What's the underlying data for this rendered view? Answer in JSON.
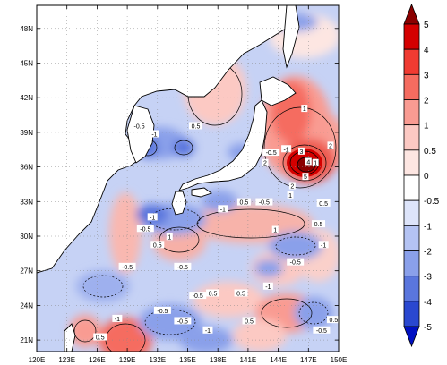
{
  "map": {
    "lon_ticks": [
      "120E",
      "123E",
      "126E",
      "129E",
      "132E",
      "135E",
      "138E",
      "141E",
      "144E",
      "147E",
      "150E"
    ],
    "lat_ticks": [
      "21N",
      "24N",
      "27N",
      "30N",
      "33N",
      "36N",
      "39N",
      "42N",
      "45N",
      "48N"
    ],
    "lon_range": [
      120,
      150
    ],
    "lat_range": [
      20,
      50
    ]
  },
  "colorbar": {
    "levels": [
      "5",
      "4",
      "3",
      "2",
      "1",
      "0.5",
      "0",
      "-0.5",
      "-1",
      "-2",
      "-3",
      "-4",
      "-5"
    ],
    "colors": [
      "#8b0000",
      "#d40000",
      "#f03b32",
      "#f56c60",
      "#f99b92",
      "#fcc9c3",
      "#fde6e2",
      "#ffffff",
      "#dde4fa",
      "#b4c3f3",
      "#8aa0ea",
      "#5a76dd",
      "#2a48d0",
      "#0010c2"
    ]
  },
  "contour_labels": [
    {
      "text": "0.5",
      "lon": 135.8,
      "lat": 39.5
    },
    {
      "text": "-0.5",
      "lon": 130.2,
      "lat": 39.5
    },
    {
      "text": "-1",
      "lon": 131.7,
      "lat": 38.8
    },
    {
      "text": "1",
      "lon": 146.6,
      "lat": 41.0
    },
    {
      "text": "-0.5",
      "lon": 143.3,
      "lat": 37.2
    },
    {
      "text": "-1",
      "lon": 144.8,
      "lat": 37.5
    },
    {
      "text": "3",
      "lon": 146.3,
      "lat": 37.3
    },
    {
      "text": "2",
      "lon": 142.7,
      "lat": 36.3
    },
    {
      "text": "4",
      "lon": 147.0,
      "lat": 36.4
    },
    {
      "text": "2",
      "lon": 149.2,
      "lat": 37.8
    },
    {
      "text": "1",
      "lon": 147.7,
      "lat": 36.3
    },
    {
      "text": "5",
      "lon": 146.7,
      "lat": 35.1
    },
    {
      "text": "2",
      "lon": 145.4,
      "lat": 34.3
    },
    {
      "text": "1",
      "lon": 145.2,
      "lat": 33.5
    },
    {
      "text": "0.5",
      "lon": 148.5,
      "lat": 32.8
    },
    {
      "text": "-1",
      "lon": 138.5,
      "lat": 32.3
    },
    {
      "text": "0.5",
      "lon": 140.6,
      "lat": 32.9
    },
    {
      "text": "-0.5",
      "lon": 142.6,
      "lat": 32.9
    },
    {
      "text": "-0.5",
      "lon": 130.8,
      "lat": 30.6
    },
    {
      "text": "-1",
      "lon": 131.5,
      "lat": 31.6
    },
    {
      "text": "1",
      "lon": 133.2,
      "lat": 29.9
    },
    {
      "text": "0.5",
      "lon": 132.0,
      "lat": 29.2
    },
    {
      "text": "1",
      "lon": 143.7,
      "lat": 30.5
    },
    {
      "text": "-1",
      "lon": 148.5,
      "lat": 29.2
    },
    {
      "text": "0.5",
      "lon": 148.0,
      "lat": 31.0
    },
    {
      "text": "-0.5",
      "lon": 129.0,
      "lat": 27.3
    },
    {
      "text": "-0.5",
      "lon": 134.5,
      "lat": 27.3
    },
    {
      "text": "-0.5",
      "lon": 145.7,
      "lat": 27.7
    },
    {
      "text": "-0.5",
      "lon": 136.0,
      "lat": 24.8
    },
    {
      "text": "0.5",
      "lon": 137.5,
      "lat": 25.0
    },
    {
      "text": "0.5",
      "lon": 140.3,
      "lat": 25.0
    },
    {
      "text": "-1",
      "lon": 143.0,
      "lat": 25.6
    },
    {
      "text": "-0.5",
      "lon": 132.5,
      "lat": 23.5
    },
    {
      "text": "-1",
      "lon": 128.0,
      "lat": 22.8
    },
    {
      "text": "0.5",
      "lon": 126.3,
      "lat": 21.2
    },
    {
      "text": "-0.5",
      "lon": 134.5,
      "lat": 22.6
    },
    {
      "text": "-1",
      "lon": 137.0,
      "lat": 21.8
    },
    {
      "text": "0.5",
      "lon": 141.1,
      "lat": 22.6
    },
    {
      "text": "-0.5",
      "lon": 148.3,
      "lat": 21.8
    },
    {
      "text": "0.5",
      "lon": 149.5,
      "lat": 22.7
    }
  ]
}
